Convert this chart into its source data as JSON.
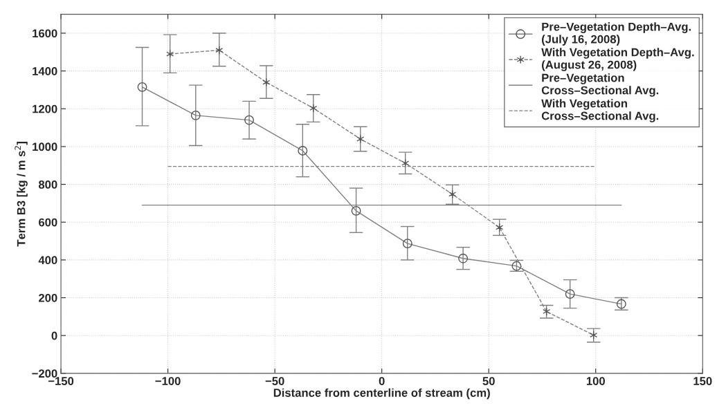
{
  "chart_data": {
    "type": "line",
    "xlabel": "Distance from centerline of stream (cm)",
    "ylabel": "Term B3 [kg / m s$^{2}$]",
    "xlim": [
      -150,
      150
    ],
    "xticks": [
      -150,
      -100,
      -50,
      0,
      50,
      100,
      150
    ],
    "ylim": [
      -200,
      1700
    ],
    "yticks": [
      -200,
      0,
      200,
      400,
      600,
      800,
      1000,
      1200,
      1400,
      1600
    ],
    "grid": true,
    "legend": "top right",
    "series": [
      {
        "name": "Pre–Vegetation Depth–Avg.\n(July 16, 2008)",
        "color": "#7f7f7f",
        "marker": "circle",
        "line_style": "solid",
        "x": [
          -112,
          -87,
          -62,
          -37,
          -12,
          12,
          38,
          63,
          88,
          112
        ],
        "values": [
          1315,
          1165,
          1140,
          978,
          660,
          487,
          408,
          368,
          220,
          167
        ],
        "errors": [
          [
            1110,
            1525
          ],
          [
            1005,
            1325
          ],
          [
            1040,
            1240
          ],
          [
            840,
            1118
          ],
          [
            545,
            780
          ],
          [
            400,
            577
          ],
          [
            350,
            467
          ],
          [
            340,
            398
          ],
          [
            145,
            295
          ],
          [
            135,
            200
          ]
        ]
      },
      {
        "name": "With Vegetation Depth–Avg.\n(August 26, 2008)",
        "color": "#7f7f7f",
        "marker": "cross",
        "line_style": "dashed",
        "x": [
          -99,
          -76,
          -54,
          -32,
          -10,
          11,
          33,
          55,
          77,
          99
        ],
        "values": [
          1490,
          1510,
          1340,
          1203,
          1040,
          912,
          748,
          572,
          127,
          2
        ],
        "errors": [
          [
            1390,
            1592
          ],
          [
            1425,
            1600
          ],
          [
            1255,
            1428
          ],
          [
            1130,
            1275
          ],
          [
            975,
            1105
          ],
          [
            855,
            970
          ],
          [
            695,
            797
          ],
          [
            530,
            615
          ],
          [
            92,
            160
          ],
          [
            -35,
            37
          ]
        ]
      },
      {
        "name": "Pre–Vegetation\nCross–Sectional Avg.",
        "color": "#7f7f7f",
        "line_style": "solid",
        "x": [
          -112,
          112
        ],
        "values": [
          690,
          690
        ]
      },
      {
        "name": "With Vegetation\nCross–Sectional Avg.",
        "color": "#7f7f7f",
        "line_style": "dashed",
        "x": [
          -100,
          100
        ],
        "values": [
          895,
          895
        ]
      }
    ]
  }
}
